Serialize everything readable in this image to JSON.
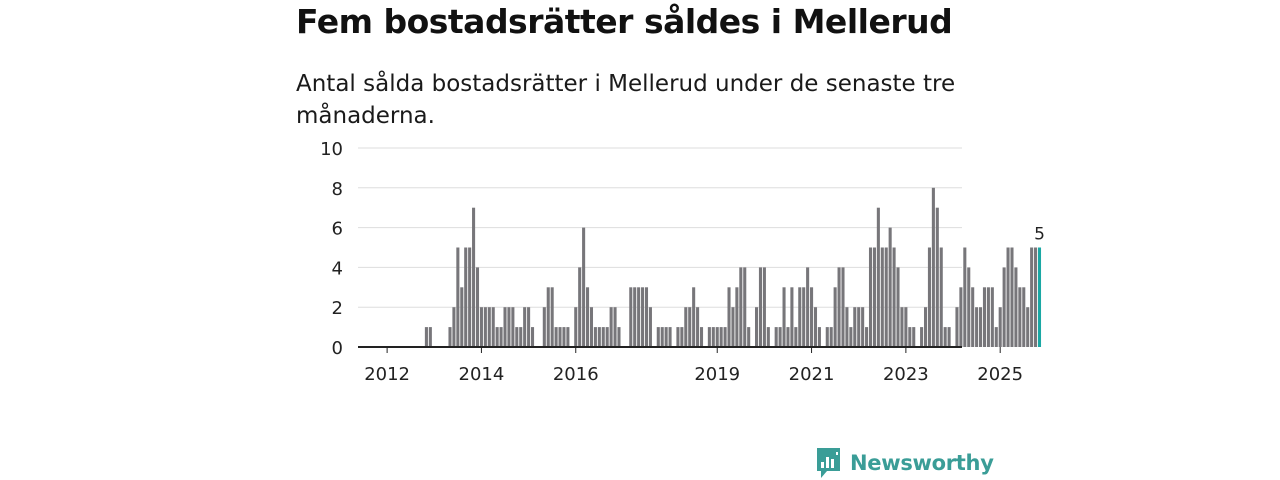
{
  "header": {
    "title": "Fem bostadsrätter såldes i Mellerud",
    "subtitle": "Antal sålda bostadsrätter i Mellerud under de senaste tre månaderna."
  },
  "brand": {
    "name": "Newsworthy",
    "color": "#3a9d97"
  },
  "colors": {
    "bar": "#77767a",
    "highlight": "#1aa8a4",
    "grid": "#dddddd",
    "axis": "#222222",
    "text": "#222222"
  },
  "chart_data": {
    "type": "bar",
    "title": "Fem bostadsrätter såldes i Mellerud",
    "xlabel": "",
    "ylabel": "",
    "ylim": [
      0,
      10
    ],
    "yticks": [
      0,
      2,
      4,
      6,
      8,
      10
    ],
    "x_start": "2011-07",
    "x_tick_labels": [
      {
        "label": "2012",
        "month_index": 6
      },
      {
        "label": "2014",
        "month_index": 30
      },
      {
        "label": "2016",
        "month_index": 54
      },
      {
        "label": "2019",
        "month_index": 90
      },
      {
        "label": "2021",
        "month_index": 114
      },
      {
        "label": "2023",
        "month_index": 138
      },
      {
        "label": "2025",
        "month_index": 162
      }
    ],
    "values": [
      0,
      0,
      0,
      0,
      0,
      0,
      0,
      0,
      0,
      0,
      0,
      0,
      0,
      0,
      0,
      0,
      1,
      1,
      0,
      0,
      0,
      0,
      1,
      2,
      5,
      3,
      5,
      5,
      7,
      4,
      2,
      2,
      2,
      2,
      1,
      1,
      2,
      2,
      2,
      1,
      1,
      2,
      2,
      1,
      0,
      0,
      2,
      3,
      3,
      1,
      1,
      1,
      1,
      0,
      2,
      4,
      6,
      3,
      2,
      1,
      1,
      1,
      1,
      2,
      2,
      1,
      0,
      0,
      3,
      3,
      3,
      3,
      3,
      2,
      0,
      1,
      1,
      1,
      1,
      0,
      1,
      1,
      2,
      2,
      3,
      2,
      1,
      0,
      1,
      1,
      1,
      1,
      1,
      3,
      2,
      3,
      4,
      4,
      1,
      0,
      2,
      4,
      4,
      1,
      0,
      1,
      1,
      3,
      1,
      3,
      1,
      3,
      3,
      4,
      3,
      2,
      1,
      0,
      1,
      1,
      3,
      4,
      4,
      2,
      1,
      2,
      2,
      2,
      1,
      5,
      5,
      7,
      5,
      5,
      6,
      5,
      4,
      2,
      2,
      1,
      1,
      0,
      1,
      2,
      5,
      8,
      7,
      5,
      1,
      1,
      0,
      2,
      3,
      5,
      4,
      3,
      2,
      2,
      3,
      3,
      3,
      1,
      2,
      4,
      5,
      5,
      4,
      3,
      3,
      2,
      5,
      5,
      5
    ],
    "highlight_last": true,
    "last_value_label": "5"
  }
}
